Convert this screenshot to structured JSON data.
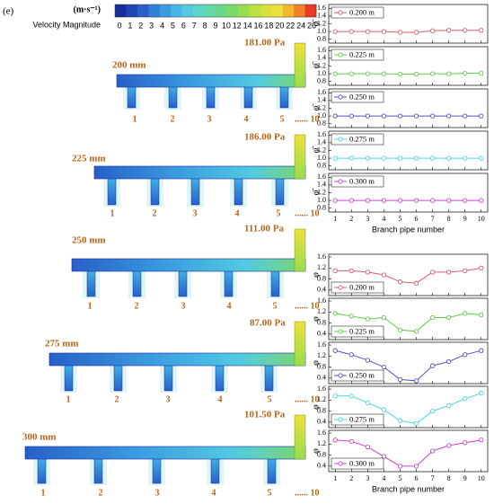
{
  "panel_label": "(e)",
  "colorbar": {
    "unit": "(m·s⁻¹)",
    "label": "Velocity Magnitude",
    "ticks": [
      0,
      1,
      2,
      3,
      4,
      5,
      6,
      7,
      8,
      9,
      10,
      12,
      14,
      16,
      18,
      20,
      22,
      24,
      26
    ],
    "colors": [
      "#1a2d9a",
      "#1f46b4",
      "#2760c8",
      "#2f7fd6",
      "#3a9ce0",
      "#46b8e6",
      "#52cbe0",
      "#5cd6c8",
      "#62d8a8",
      "#6ad88a",
      "#7cd868",
      "#98dc50",
      "#b8e040",
      "#d6e23a",
      "#eee03a",
      "#f4b830",
      "#f0802a",
      "#e83a22"
    ]
  },
  "simulations": [
    {
      "width": "200 mm",
      "pressure": "181.00 Pa",
      "branches": [
        "1",
        "2",
        "3",
        "4",
        "5",
        "...... 10"
      ]
    },
    {
      "width": "225 mm",
      "pressure": "186.00 Pa",
      "branches": [
        "1",
        "2",
        "3",
        "4",
        "5",
        "...... 10"
      ]
    },
    {
      "width": "250 mm",
      "pressure": "111.00 Pa",
      "branches": [
        "1",
        "2",
        "3",
        "4",
        "5",
        "...... 10"
      ]
    },
    {
      "width": "275 mm",
      "pressure": "87.00 Pa",
      "branches": [
        "1",
        "2",
        "3",
        "4",
        "5",
        "...... 10"
      ]
    },
    {
      "width": "300 mm",
      "pressure": "101.50 Pa",
      "branches": [
        "1",
        "2",
        "3",
        "4",
        "5",
        "...... 10"
      ]
    }
  ],
  "chart_data": [
    {
      "type": "line",
      "ylabel": "φ̄",
      "x": [
        1,
        2,
        3,
        4,
        5,
        6,
        7,
        8,
        9,
        10
      ],
      "xlim": [
        0.6,
        10.4
      ],
      "ylim": [
        0.7,
        1.7
      ],
      "yticks": [
        0.8,
        {
          "value": 1,
          "label": "1.0"
        },
        1.2,
        1.4,
        1.6
      ],
      "legend": "upper left",
      "series": [
        {
          "name": "0.200 m",
          "color": "#e05a6a",
          "values": [
            1.0,
            1.0,
            1.0,
            1.0,
            0.98,
            0.98,
            1.02,
            1.03,
            1.03,
            1.03
          ]
        }
      ]
    },
    {
      "type": "line",
      "ylabel": "φ̄",
      "x": [
        1,
        2,
        3,
        4,
        5,
        6,
        7,
        8,
        9,
        10
      ],
      "xlim": [
        0.6,
        10.4
      ],
      "ylim": [
        0.7,
        1.7
      ],
      "yticks": [
        0.8,
        {
          "value": 1,
          "label": "1.0"
        },
        1.2,
        1.4,
        1.6
      ],
      "legend": "upper left",
      "series": [
        {
          "name": "0.225 m",
          "color": "#5ccc44",
          "values": [
            1.0,
            1.0,
            1.0,
            1.0,
            0.99,
            0.99,
            1.0,
            1.0,
            1.01,
            1.01
          ]
        }
      ]
    },
    {
      "type": "line",
      "ylabel": "φ̄",
      "x": [
        1,
        2,
        3,
        4,
        5,
        6,
        7,
        8,
        9,
        10
      ],
      "xlim": [
        0.6,
        10.4
      ],
      "ylim": [
        0.7,
        1.7
      ],
      "yticks": [
        0.8,
        {
          "value": 1,
          "label": "1.0"
        },
        1.2,
        1.4,
        1.6
      ],
      "legend": "upper left",
      "series": [
        {
          "name": "0.250 m",
          "color": "#5050c8",
          "values": [
            1.0,
            1.0,
            1.0,
            1.0,
            1.0,
            1.0,
            1.0,
            1.0,
            1.0,
            1.0
          ]
        }
      ]
    },
    {
      "type": "line",
      "ylabel": "φ̄",
      "x": [
        1,
        2,
        3,
        4,
        5,
        6,
        7,
        8,
        9,
        10
      ],
      "xlim": [
        0.6,
        10.4
      ],
      "ylim": [
        0.7,
        1.7
      ],
      "yticks": [
        0.8,
        {
          "value": 1,
          "label": "1.0"
        },
        1.2,
        1.4,
        1.6
      ],
      "legend": "upper left",
      "series": [
        {
          "name": "0.275 m",
          "color": "#40d8e0",
          "values": [
            1.0,
            1.0,
            1.0,
            1.0,
            1.0,
            1.0,
            1.0,
            1.0,
            1.0,
            1.0
          ]
        }
      ]
    },
    {
      "type": "line",
      "ylabel": "φ̄",
      "x": [
        1,
        2,
        3,
        4,
        5,
        6,
        7,
        8,
        9,
        10
      ],
      "xlim": [
        0.6,
        10.4
      ],
      "ylim": [
        0.7,
        1.7
      ],
      "yticks": [
        0.8,
        {
          "value": 1,
          "label": "1.0"
        },
        1.2,
        1.4,
        1.6
      ],
      "legend": "upper left",
      "xticks": [
        1,
        2,
        3,
        4,
        5,
        6,
        7,
        8,
        9,
        10
      ],
      "xlabel": "Branch pipe number",
      "series": [
        {
          "name": "0.300 m",
          "color": "#d040d0",
          "values": [
            1.0,
            1.0,
            1.0,
            1.0,
            1.0,
            1.0,
            1.0,
            1.0,
            1.0,
            1.0
          ]
        }
      ]
    },
    {
      "type": "line",
      "ylabel": "φ",
      "x": [
        1,
        2,
        3,
        4,
        5,
        6,
        7,
        8,
        9,
        10
      ],
      "xlim": [
        0.6,
        10.4
      ],
      "ylim": [
        0.2,
        1.7
      ],
      "yticks": [
        0.4,
        0.8,
        1.2,
        1.6
      ],
      "legend": "lower left",
      "series": [
        {
          "name": "0.200 m",
          "color": "#e05a6a",
          "values": [
            1.1,
            1.1,
            1.05,
            0.95,
            0.7,
            0.65,
            1.05,
            1.05,
            1.1,
            1.2
          ]
        }
      ]
    },
    {
      "type": "line",
      "ylabel": "φ",
      "x": [
        1,
        2,
        3,
        4,
        5,
        6,
        7,
        8,
        9,
        10
      ],
      "xlim": [
        0.6,
        10.4
      ],
      "ylim": [
        0.2,
        1.7
      ],
      "yticks": [
        0.4,
        0.8,
        1.2,
        1.6
      ],
      "legend": "lower left",
      "series": [
        {
          "name": "0.225 m",
          "color": "#5ccc44",
          "values": [
            1.15,
            1.05,
            0.95,
            1.0,
            0.55,
            0.5,
            1.0,
            1.0,
            1.15,
            1.1
          ]
        }
      ]
    },
    {
      "type": "line",
      "ylabel": "φ",
      "x": [
        1,
        2,
        3,
        4,
        5,
        6,
        7,
        8,
        9,
        10
      ],
      "xlim": [
        0.6,
        10.4
      ],
      "ylim": [
        0.2,
        1.7
      ],
      "yticks": [
        0.4,
        0.8,
        1.2,
        1.6
      ],
      "legend": "lower left",
      "series": [
        {
          "name": "0.250 m",
          "color": "#5050c8",
          "values": [
            1.4,
            1.25,
            1.05,
            0.8,
            0.35,
            0.3,
            0.85,
            1.0,
            1.25,
            1.4
          ]
        }
      ]
    },
    {
      "type": "line",
      "ylabel": "φ",
      "x": [
        1,
        2,
        3,
        4,
        5,
        6,
        7,
        8,
        9,
        10
      ],
      "xlim": [
        0.6,
        10.4
      ],
      "ylim": [
        0.2,
        1.7
      ],
      "yticks": [
        0.4,
        0.8,
        1.2,
        1.6
      ],
      "legend": "lower left",
      "series": [
        {
          "name": "0.275 m",
          "color": "#40d8e0",
          "values": [
            1.35,
            1.35,
            1.1,
            0.85,
            0.45,
            0.35,
            0.8,
            1.0,
            1.25,
            1.45
          ]
        }
      ]
    },
    {
      "type": "line",
      "ylabel": "φ",
      "x": [
        1,
        2,
        3,
        4,
        5,
        6,
        7,
        8,
        9,
        10
      ],
      "xlim": [
        0.6,
        10.4
      ],
      "ylim": [
        0.2,
        1.7
      ],
      "yticks": [
        0.4,
        0.8,
        1.2,
        1.6
      ],
      "legend": "lower left",
      "xticks": [
        1,
        2,
        3,
        4,
        5,
        6,
        7,
        8,
        9,
        10
      ],
      "xlabel": "Branch pipe number",
      "series": [
        {
          "name": "0.300 m",
          "color": "#d040d0",
          "values": [
            1.35,
            1.3,
            1.1,
            0.75,
            0.4,
            0.4,
            0.95,
            1.15,
            1.25,
            1.35
          ]
        }
      ]
    }
  ]
}
